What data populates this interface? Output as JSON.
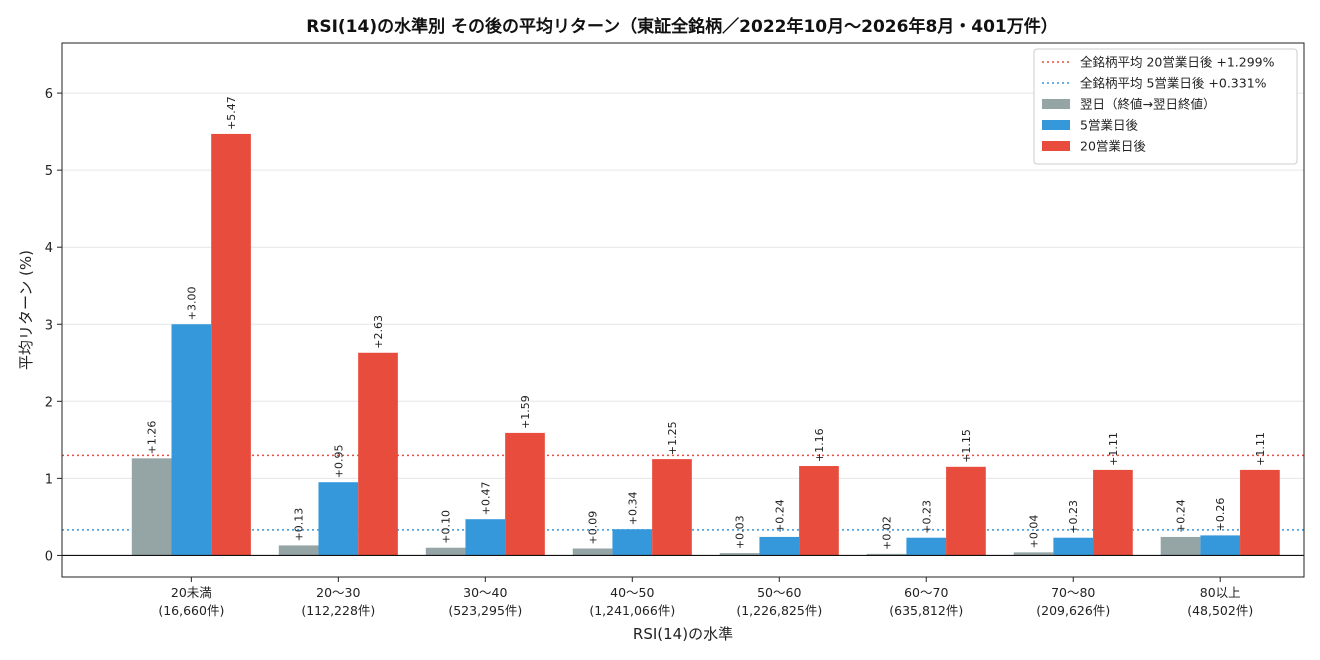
{
  "chart_data": {
    "type": "bar",
    "title": "RSI(14)の水準別 その後の平均リターン（東証全銘柄／2022年10月〜2026年8月・401万件）",
    "xlabel": "RSI(14)の水準",
    "ylabel": "平均リターン (%)",
    "ylim": [
      -0.28,
      6.65
    ],
    "yticks": [
      0,
      1,
      2,
      3,
      4,
      5,
      6
    ],
    "grid": "y",
    "legend_position": "top-right",
    "categories": [
      "20未満",
      "20〜30",
      "30〜40",
      "40〜50",
      "50〜60",
      "60〜70",
      "70〜80",
      "80以上"
    ],
    "category_counts": [
      "(16,660件)",
      "(112,228件)",
      "(523,295件)",
      "(1,241,066件)",
      "(1,226,825件)",
      "(635,812件)",
      "(209,626件)",
      "(48,502件)"
    ],
    "series": [
      {
        "name": "翌日（終値→翌日終値）",
        "color": "#95a5a6",
        "values": [
          1.26,
          0.13,
          0.1,
          0.09,
          0.03,
          0.02,
          0.04,
          0.24
        ],
        "labels": [
          "+1.26",
          "+0.13",
          "+0.10",
          "+0.09",
          "+0.03",
          "+0.02",
          "+0.04",
          "+0.24"
        ]
      },
      {
        "name": "5営業日後",
        "color": "#3498db",
        "values": [
          3.0,
          0.95,
          0.47,
          0.34,
          0.24,
          0.23,
          0.23,
          0.26
        ],
        "labels": [
          "+3.00",
          "+0.95",
          "+0.47",
          "+0.34",
          "+0.24",
          "+0.23",
          "+0.23",
          "+0.26"
        ]
      },
      {
        "name": "20営業日後",
        "color": "#e74c3c",
        "values": [
          5.47,
          2.63,
          1.59,
          1.25,
          1.16,
          1.15,
          1.11,
          1.11
        ],
        "labels": [
          "+5.47",
          "+2.63",
          "+1.59",
          "+1.25",
          "+1.16",
          "+1.15",
          "+1.11",
          "+1.11"
        ]
      }
    ],
    "reference_lines": [
      {
        "name": "全銘柄平均 20営業日後 +1.299%",
        "value": 1.299,
        "color": "#e74c3c",
        "style": "dotted"
      },
      {
        "name": "全銘柄平均 5営業日後 +0.331%",
        "value": 0.331,
        "color": "#3498db",
        "style": "dotted"
      }
    ]
  }
}
